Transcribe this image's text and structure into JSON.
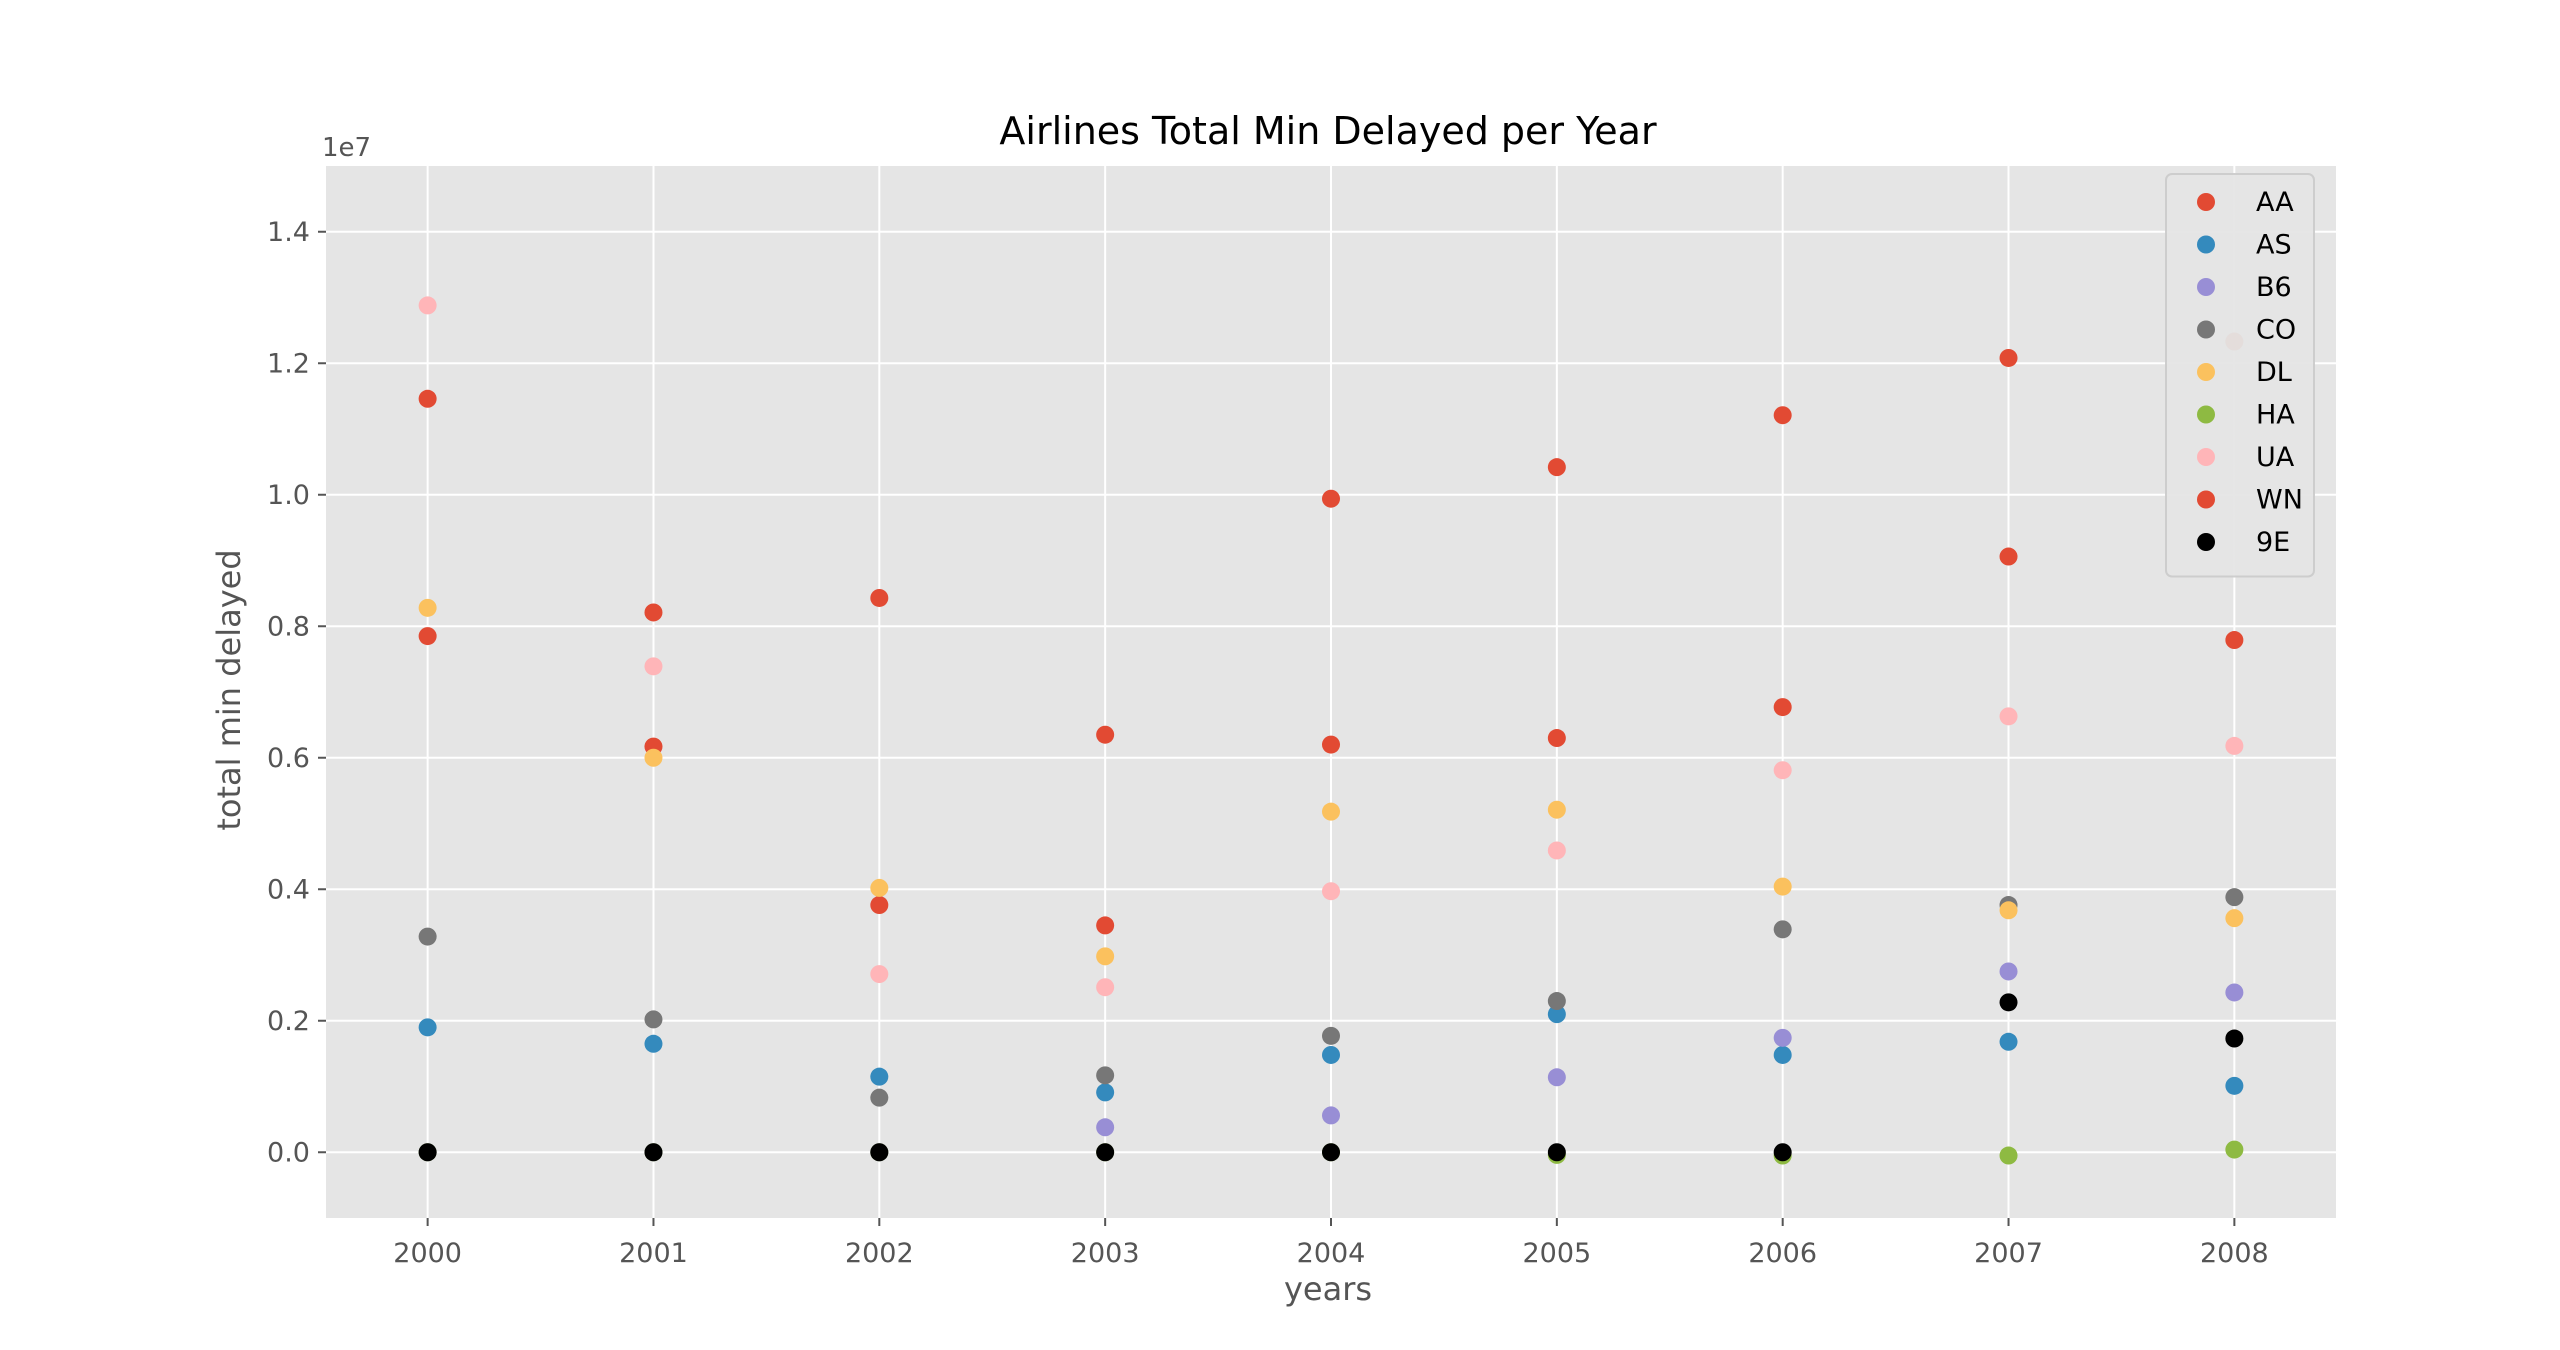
{
  "chart_data": {
    "type": "scatter",
    "title": "Airlines Total Min Delayed per Year",
    "xlabel": "years",
    "ylabel": "total min delayed",
    "y_offset_label": "1e7",
    "x": [
      2000,
      2001,
      2002,
      2003,
      2004,
      2005,
      2006,
      2007,
      2008
    ],
    "xticks": [
      "2000",
      "2001",
      "2002",
      "2003",
      "2004",
      "2005",
      "2006",
      "2007",
      "2008"
    ],
    "yticks": [
      "0.0",
      "0.2",
      "0.4",
      "0.6",
      "0.8",
      "1.0",
      "1.2",
      "1.4"
    ],
    "ylim": [
      -0.1,
      1.5
    ],
    "xlim": [
      1999.55,
      2008.45
    ],
    "grid": true,
    "legend_position": "top-right",
    "series": [
      {
        "name": "AA",
        "color": "#E24A33",
        "values": [
          0.785,
          0.617,
          0.376,
          0.345,
          0.62,
          0.63,
          0.677,
          0.906,
          0.779
        ]
      },
      {
        "name": "AS",
        "color": "#348ABD",
        "values": [
          0.19,
          0.165,
          0.115,
          0.091,
          0.148,
          0.21,
          0.148,
          0.168,
          0.101
        ]
      },
      {
        "name": "B6",
        "color": "#988ED5",
        "values": [
          0,
          0,
          0,
          0.038,
          0.056,
          0.114,
          0.174,
          0.275,
          0.243
        ]
      },
      {
        "name": "CO",
        "color": "#777777",
        "values": [
          0.328,
          0.202,
          0.083,
          0.117,
          0.177,
          0.23,
          0.339,
          0.376,
          0.388
        ]
      },
      {
        "name": "DL",
        "color": "#FBC15E",
        "values": [
          0.828,
          0.6,
          0.402,
          0.298,
          0.518,
          0.521,
          0.404,
          0.368,
          0.356
        ]
      },
      {
        "name": "HA",
        "color": "#8EBA42",
        "values": [
          0,
          0,
          0,
          0,
          0,
          -0.004,
          -0.005,
          -0.005,
          0.004
        ]
      },
      {
        "name": "UA",
        "color": "#FFB5B8",
        "values": [
          1.288,
          0.739,
          0.271,
          0.251,
          0.397,
          0.459,
          0.581,
          0.663,
          0.618
        ]
      },
      {
        "name": "WN",
        "color": "#E24A33",
        "values": [
          1.146,
          0.821,
          0.843,
          0.635,
          0.994,
          1.042,
          1.121,
          1.208,
          1.233
        ]
      },
      {
        "name": "9E",
        "color": "#000000",
        "values": [
          0,
          0,
          0,
          0,
          0,
          0,
          0,
          0.228,
          0.173
        ]
      }
    ]
  }
}
